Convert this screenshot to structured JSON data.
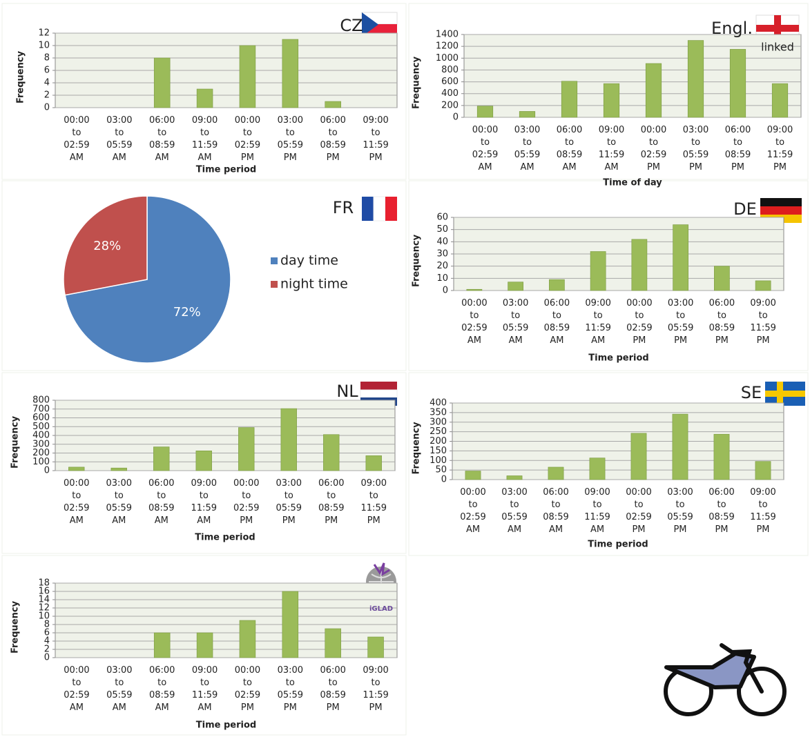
{
  "chart_data": [
    {
      "type": "bar",
      "label": "CZ",
      "y_label": "Frequency",
      "x_label": "Time period",
      "color": "#9bbb59",
      "grid": true,
      "categories": [
        "00:00 to 02:59 AM",
        "03:00 to 05:59 AM",
        "06:00 to 08:59 AM",
        "09:00 to 11:59 AM",
        "00:00 to 02:59 PM",
        "03:00 to 05:59 PM",
        "06:00 to 08:59 PM",
        "09:00 to 11:59 PM"
      ],
      "values": [
        0,
        0,
        8,
        3,
        10,
        11,
        1,
        0
      ],
      "ylim": [
        0,
        12
      ],
      "yticks": [
        0,
        2,
        4,
        6,
        8,
        10,
        12
      ]
    },
    {
      "type": "bar",
      "label": "Engl.",
      "sublabel": "linked",
      "y_label": "Frequency",
      "x_label": "Time of day",
      "color": "#9bbb59",
      "grid": true,
      "categories": [
        "00:00 to 02:59 AM",
        "03:00 to 05:59 AM",
        "06:00 to 08:59 AM",
        "09:00 to 11:59 AM",
        "00:00 to 02:59 PM",
        "03:00 to 05:59 PM",
        "06:00 to 08:59 PM",
        "09:00 to 11:59 PM"
      ],
      "values": [
        190,
        100,
        610,
        570,
        910,
        1300,
        1150,
        570
      ],
      "ylim": [
        0,
        1400
      ],
      "yticks": [
        0,
        200,
        400,
        600,
        800,
        1000,
        1200,
        1400
      ]
    },
    {
      "type": "pie",
      "label": "FR",
      "categories": [
        "day time",
        "night time"
      ],
      "values": [
        72,
        28
      ],
      "value_labels": [
        "72%",
        "28%"
      ],
      "colors": [
        "#4f81bd",
        "#c0504d"
      ]
    },
    {
      "type": "bar",
      "label": "DE",
      "y_label": "Frequency",
      "x_label": "Time period",
      "color": "#9bbb59",
      "grid": true,
      "categories": [
        "00:00 to 02:59 AM",
        "03:00 to 05:59 AM",
        "06:00 to 08:59 AM",
        "09:00 to 11:59 AM",
        "00:00 to 02:59 PM",
        "03:00 to 05:59 PM",
        "06:00 to 08:59 PM",
        "09:00 to 11:59 PM"
      ],
      "values": [
        1,
        7,
        9,
        32,
        42,
        54,
        20,
        8
      ],
      "ylim": [
        0,
        60
      ],
      "yticks": [
        0,
        10,
        20,
        30,
        40,
        50,
        60
      ]
    },
    {
      "type": "bar",
      "label": "NL",
      "y_label": "Frequency",
      "x_label": "Time period",
      "color": "#9bbb59",
      "grid": true,
      "categories": [
        "00:00 to 02:59 AM",
        "03:00 to 05:59 AM",
        "06:00 to 08:59 AM",
        "09:00 to 11:59 AM",
        "00:00 to 02:59 PM",
        "03:00 to 05:59 PM",
        "06:00 to 08:59 PM",
        "09:00 to 11:59 PM"
      ],
      "values": [
        40,
        30,
        270,
        225,
        490,
        705,
        410,
        170
      ],
      "ylim": [
        0,
        800
      ],
      "yticks": [
        0,
        100,
        200,
        300,
        400,
        500,
        600,
        700,
        800
      ]
    },
    {
      "type": "bar",
      "label": "SE",
      "y_label": "Frequency",
      "x_label": "Time period",
      "color": "#9bbb59",
      "grid": true,
      "categories": [
        "00:00 to 02:59 AM",
        "03:00 to 05:59 AM",
        "06:00 to 08:59 AM",
        "09:00 to 11:59 AM",
        "00:00 to 02:59 PM",
        "03:00 to 05:59 PM",
        "06:00 to 08:59 PM",
        "09:00 to 11:59 PM"
      ],
      "values": [
        45,
        20,
        65,
        113,
        242,
        342,
        237,
        95
      ],
      "ylim": [
        0,
        400
      ],
      "yticks": [
        0,
        50,
        100,
        150,
        200,
        250,
        300,
        350,
        400
      ]
    },
    {
      "type": "bar",
      "logo_text": "iGLAD",
      "y_label": "Frequency",
      "x_label": "Time period",
      "color": "#9bbb59",
      "grid": true,
      "categories": [
        "00:00 to 02:59 AM",
        "03:00 to 05:59 AM",
        "06:00 to 08:59 AM",
        "09:00 to 11:59 AM",
        "00:00 to 02:59 PM",
        "03:00 to 05:59 PM",
        "06:00 to 08:59 PM",
        "09:00 to 11:59 PM"
      ],
      "values": [
        0,
        0,
        6,
        6,
        9,
        16,
        7,
        5
      ],
      "ylim": [
        0,
        18
      ],
      "yticks": [
        0,
        2,
        4,
        6,
        8,
        10,
        12,
        14,
        16,
        18
      ]
    }
  ]
}
